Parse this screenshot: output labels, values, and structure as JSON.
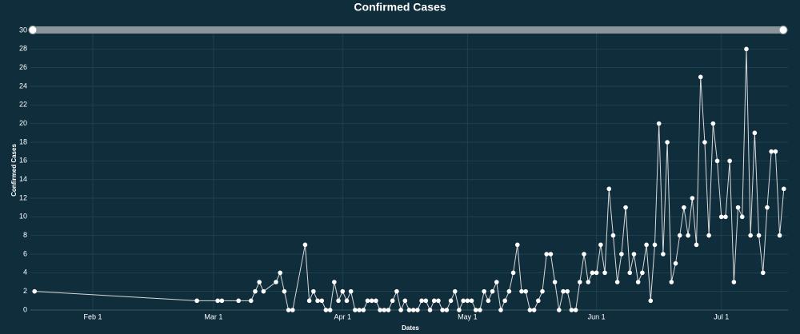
{
  "chart_data": {
    "type": "line",
    "title": "Confirmed Cases",
    "x_label": "Dates",
    "y_label": "Confirmed Cases",
    "x": [
      "Jan 18",
      "Feb 26",
      "Mar 2",
      "Mar 3",
      "Mar 7",
      "Mar 10",
      "Mar 11",
      "Mar 12",
      "Mar 13",
      "Mar 16",
      "Mar 17",
      "Mar 18",
      "Mar 19",
      "Mar 20",
      "Mar 23",
      "Mar 24",
      "Mar 25",
      "Mar 26",
      "Mar 27",
      "Mar 28",
      "Mar 29",
      "Mar 30",
      "Mar 31",
      "Apr 1",
      "Apr 2",
      "Apr 3",
      "Apr 4",
      "Apr 5",
      "Apr 6",
      "Apr 7",
      "Apr 8",
      "Apr 9",
      "Apr 10",
      "Apr 11",
      "Apr 12",
      "Apr 13",
      "Apr 14",
      "Apr 15",
      "Apr 16",
      "Apr 17",
      "Apr 18",
      "Apr 19",
      "Apr 20",
      "Apr 21",
      "Apr 22",
      "Apr 23",
      "Apr 24",
      "Apr 25",
      "Apr 26",
      "Apr 27",
      "Apr 28",
      "Apr 29",
      "Apr 30",
      "May 1",
      "May 2",
      "May 3",
      "May 4",
      "May 5",
      "May 6",
      "May 7",
      "May 8",
      "May 9",
      "May 10",
      "May 11",
      "May 12",
      "May 13",
      "May 14",
      "May 15",
      "May 16",
      "May 17",
      "May 18",
      "May 19",
      "May 20",
      "May 21",
      "May 22",
      "May 23",
      "May 24",
      "May 25",
      "May 26",
      "May 27",
      "May 28",
      "May 29",
      "May 30",
      "May 31",
      "Jun 1",
      "Jun 2",
      "Jun 3",
      "Jun 4",
      "Jun 5",
      "Jun 6",
      "Jun 7",
      "Jun 8",
      "Jun 9",
      "Jun 10",
      "Jun 11",
      "Jun 12",
      "Jun 13",
      "Jun 14",
      "Jun 15",
      "Jun 16",
      "Jun 17",
      "Jun 18",
      "Jun 19",
      "Jun 20",
      "Jun 21",
      "Jun 22",
      "Jun 23",
      "Jun 24",
      "Jun 25",
      "Jun 26",
      "Jun 27",
      "Jun 28",
      "Jun 29",
      "Jun 30",
      "Jul 1",
      "Jul 2",
      "Jul 3",
      "Jul 4",
      "Jul 5",
      "Jul 6",
      "Jul 7",
      "Jul 8",
      "Jul 9",
      "Jul 10",
      "Jul 11",
      "Jul 12",
      "Jul 13",
      "Jul 14",
      "Jul 15",
      "Jul 16"
    ],
    "values": [
      2,
      1,
      1,
      1,
      1,
      1,
      2,
      3,
      2,
      3,
      4,
      2,
      0,
      0,
      7,
      1,
      2,
      1,
      1,
      0,
      0,
      3,
      1,
      2,
      1,
      2,
      0,
      0,
      0,
      1,
      1,
      1,
      0,
      0,
      0,
      1,
      2,
      0,
      1,
      0,
      0,
      0,
      1,
      1,
      0,
      1,
      1,
      0,
      0,
      1,
      2,
      0,
      1,
      1,
      1,
      0,
      0,
      2,
      1,
      2,
      3,
      0,
      1,
      2,
      4,
      7,
      2,
      2,
      0,
      0,
      1,
      2,
      6,
      6,
      3,
      0,
      2,
      2,
      0,
      0,
      3,
      6,
      3,
      4,
      4,
      7,
      4,
      13,
      8,
      3,
      6,
      11,
      4,
      6,
      3,
      4,
      7,
      1,
      7,
      20,
      6,
      18,
      3,
      5,
      8,
      11,
      8,
      12,
      7,
      25,
      18,
      8,
      20,
      16,
      10,
      10,
      16,
      3,
      11,
      10,
      28,
      8,
      19,
      8,
      4,
      11,
      17,
      17,
      8,
      13
    ],
    "color": "#d9d9d9",
    "xlim": [
      "Jan 17",
      "Jul 17"
    ],
    "xticks": [
      "Feb 1",
      "Mar 1",
      "Apr 1",
      "May 1",
      "Jun 1",
      "Jul 1"
    ],
    "ylim": [
      0,
      30
    ],
    "yticks": [
      0,
      2,
      4,
      6,
      8,
      10,
      12,
      14,
      16,
      18,
      20,
      22,
      24,
      26,
      28,
      30
    ],
    "grid": true
  }
}
